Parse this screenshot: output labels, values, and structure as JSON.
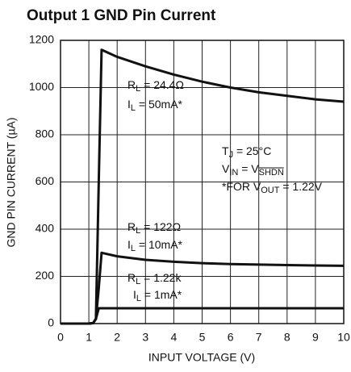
{
  "chart_data": {
    "type": "line",
    "title": "Output 1 GND Pin Current",
    "x_label": "INPUT VOLTAGE (V)",
    "y_label": "GND PIN CURRENT (µA)",
    "x": [
      0,
      1.0,
      1.15,
      1.25,
      1.35,
      1.45,
      2,
      3,
      4,
      5,
      6,
      7,
      8,
      9,
      10
    ],
    "series": [
      {
        "name": "R_L = 24.4Ω",
        "color": "#111111",
        "values": [
          0,
          0,
          2,
          20,
          600,
          1160,
          1130,
          1090,
          1055,
          1025,
          1000,
          980,
          965,
          950,
          940
        ]
      },
      {
        "name": "R_L = 122Ω",
        "color": "#111111",
        "values": [
          0,
          0,
          2,
          20,
          150,
          300,
          285,
          270,
          262,
          256,
          252,
          250,
          248,
          246,
          245
        ]
      },
      {
        "name": "R_L = 1.22k",
        "color": "#111111",
        "values": [
          0,
          0,
          2,
          20,
          65,
          65,
          65,
          65,
          65,
          65,
          65,
          65,
          65,
          65,
          65
        ]
      }
    ],
    "xlim": [
      0,
      10
    ],
    "xticks": [
      0,
      1,
      2,
      3,
      4,
      5,
      6,
      7,
      8,
      9,
      10
    ],
    "ylim": [
      0,
      1200
    ],
    "yticks": [
      0,
      200,
      400,
      600,
      800,
      1000,
      1200
    ],
    "grid": true,
    "annotations": [
      [
        {
          "text": "R"
        },
        {
          "text": "L",
          "sub": true
        },
        {
          "text": " = 24.4Ω"
        }
      ],
      [
        {
          "text": "I"
        },
        {
          "text": "L",
          "sub": true
        },
        {
          "text": " = 50mA*"
        }
      ],
      [
        {
          "text": "T"
        },
        {
          "text": "J",
          "sub": true
        },
        {
          "text": " = 25°C"
        }
      ],
      [
        {
          "text": "V"
        },
        {
          "text": "IN",
          "sub": true
        },
        {
          "text": " = V"
        },
        {
          "text": "SHDN",
          "sub": true,
          "overline": true
        }
      ],
      [
        {
          "text": "*FOR V"
        },
        {
          "text": "OUT",
          "sub": true
        },
        {
          "text": " = 1.22V"
        }
      ],
      [
        {
          "text": "R"
        },
        {
          "text": "L",
          "sub": true
        },
        {
          "text": " = 122Ω"
        }
      ],
      [
        {
          "text": "I"
        },
        {
          "text": "L",
          "sub": true
        },
        {
          "text": " = 10mA*"
        }
      ],
      [
        {
          "text": "R"
        },
        {
          "text": "L",
          "sub": true
        },
        {
          "text": " = 1.22k"
        }
      ],
      [
        {
          "text": "I"
        },
        {
          "text": "L",
          "sub": true
        },
        {
          "text": " = 1mA*"
        }
      ]
    ]
  }
}
